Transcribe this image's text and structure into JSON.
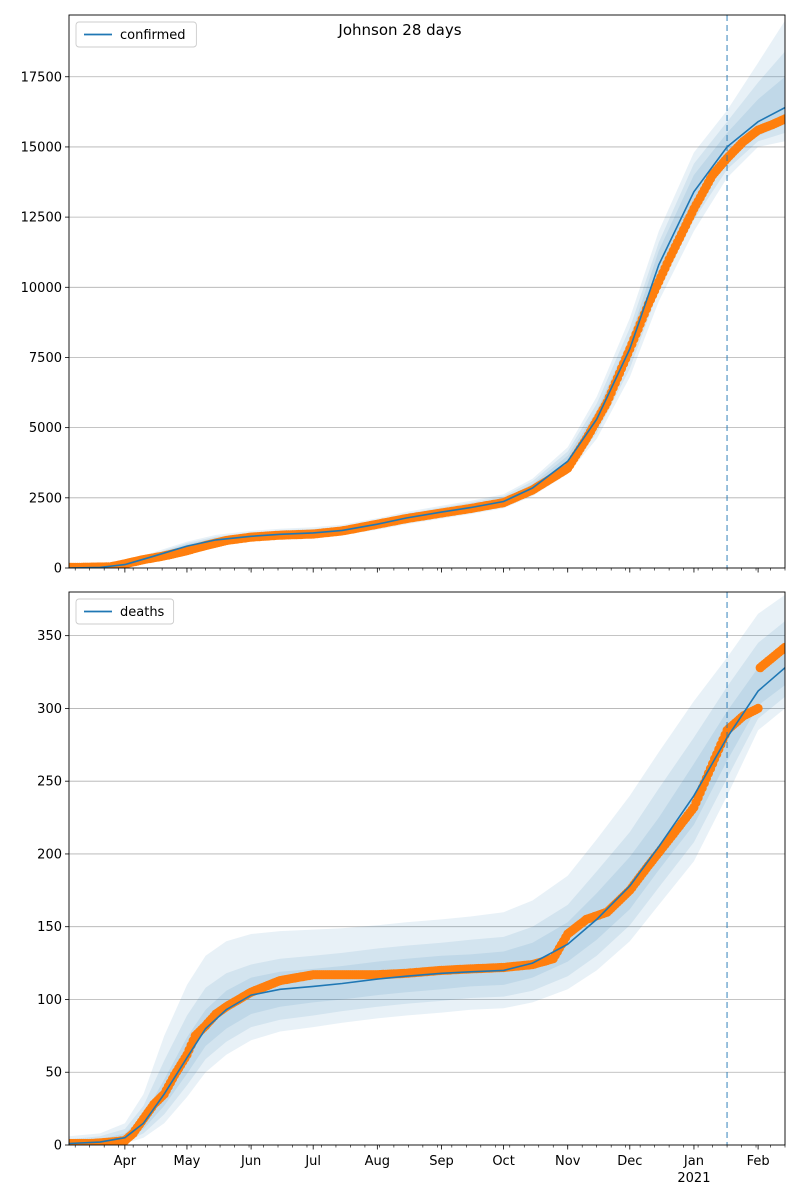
{
  "figure": {
    "title": "Johnson 28 days"
  },
  "colors": {
    "model_line": "#1f77b4",
    "observed_points": "#ff7f0e",
    "band": "#1f77b4",
    "grid": "#b0b0b0",
    "forecast_line": "#1f77b4"
  },
  "x_axis": {
    "month_labels": [
      {
        "date": "2020-04-01",
        "label": "Apr"
      },
      {
        "date": "2020-05-01",
        "label": "May"
      },
      {
        "date": "2020-06-01",
        "label": "Jun"
      },
      {
        "date": "2020-07-01",
        "label": "Jul"
      },
      {
        "date": "2020-08-01",
        "label": "Aug"
      },
      {
        "date": "2020-09-01",
        "label": "Sep"
      },
      {
        "date": "2020-10-01",
        "label": "Oct"
      },
      {
        "date": "2020-11-01",
        "label": "Nov"
      },
      {
        "date": "2020-12-01",
        "label": "Dec"
      },
      {
        "date": "2021-01-01",
        "label": "Jan"
      },
      {
        "date": "2021-02-01",
        "label": "Feb"
      }
    ],
    "year_label": "2021",
    "xlim": [
      "2020-03-05",
      "2021-02-14"
    ],
    "forecast_start": "2021-01-17"
  },
  "chart_data": [
    {
      "type": "line",
      "title": "",
      "xlabel": "",
      "ylabel": "",
      "ylim": [
        0,
        19700
      ],
      "yticks": [
        0,
        2500,
        5000,
        7500,
        10000,
        12500,
        15000,
        17500
      ],
      "grid": "horizontal",
      "legend": {
        "placement": "top-left",
        "entries": [
          "confirmed"
        ]
      },
      "series": [
        {
          "name": "confirmed",
          "kind": "model-median",
          "x": [
            "2020-03-05",
            "2020-03-20",
            "2020-04-01",
            "2020-04-15",
            "2020-05-01",
            "2020-05-15",
            "2020-06-01",
            "2020-06-15",
            "2020-07-01",
            "2020-07-15",
            "2020-08-01",
            "2020-08-15",
            "2020-09-01",
            "2020-09-15",
            "2020-10-01",
            "2020-10-15",
            "2020-11-01",
            "2020-11-15",
            "2020-12-01",
            "2020-12-15",
            "2021-01-01",
            "2021-01-17",
            "2021-02-01",
            "2021-02-14"
          ],
          "y": [
            0,
            20,
            120,
            420,
            780,
            1000,
            1130,
            1200,
            1250,
            1340,
            1560,
            1780,
            1990,
            2150,
            2370,
            2850,
            3800,
            5300,
            7800,
            10800,
            13400,
            15000,
            15900,
            16400
          ],
          "bands": [
            {
              "lower": [
                0,
                5,
                70,
                320,
                640,
                840,
                960,
                1030,
                1080,
                1160,
                1360,
                1560,
                1760,
                1920,
                2130,
                2560,
                3350,
                4600,
                6800,
                9500,
                12000,
                13900,
                15000,
                15200
              ],
              "upper": [
                50,
                80,
                200,
                560,
                940,
                1180,
                1320,
                1400,
                1450,
                1540,
                1770,
                2000,
                2220,
                2390,
                2630,
                3180,
                4300,
                6100,
                8900,
                12000,
                14800,
                16300,
                18000,
                19500
              ]
            },
            {
              "lower": [
                0,
                8,
                85,
                350,
                680,
                880,
                1000,
                1070,
                1120,
                1200,
                1400,
                1610,
                1810,
                1970,
                2180,
                2630,
                3470,
                4800,
                7100,
                9900,
                12400,
                14200,
                15200,
                15500
              ],
              "upper": [
                35,
                55,
                170,
                510,
                890,
                1120,
                1260,
                1340,
                1390,
                1480,
                1710,
                1940,
                2160,
                2330,
                2560,
                3090,
                4150,
                5850,
                8550,
                11600,
                14400,
                15900,
                17300,
                18400
              ]
            },
            {
              "lower": [
                0,
                12,
                100,
                380,
                720,
                930,
                1050,
                1120,
                1170,
                1250,
                1460,
                1670,
                1870,
                2030,
                2250,
                2720,
                3600,
                5000,
                7400,
                10300,
                12800,
                14500,
                15400,
                15800
              ],
              "upper": [
                25,
                35,
                145,
                470,
                840,
                1070,
                1210,
                1280,
                1330,
                1420,
                1650,
                1880,
                2100,
                2260,
                2490,
                2980,
                4000,
                5600,
                8200,
                11300,
                14000,
                15500,
                16700,
                17500
              ]
            }
          ]
        },
        {
          "name": "",
          "kind": "observed",
          "x": [
            "2020-03-05",
            "2020-03-15",
            "2020-03-25",
            "2020-04-01",
            "2020-04-10",
            "2020-04-20",
            "2020-05-01",
            "2020-05-10",
            "2020-05-20",
            "2020-06-01",
            "2020-06-15",
            "2020-07-01",
            "2020-07-15",
            "2020-08-01",
            "2020-08-15",
            "2020-09-01",
            "2020-09-15",
            "2020-10-01",
            "2020-10-15",
            "2020-11-01",
            "2020-11-10",
            "2020-11-20",
            "2020-12-01",
            "2020-12-10",
            "2020-12-20",
            "2021-01-01",
            "2021-01-10",
            "2021-01-17",
            "2021-01-25",
            "2021-02-01",
            "2021-02-08",
            "2021-02-14"
          ],
          "y": [
            20,
            30,
            40,
            150,
            300,
            430,
            620,
            800,
            980,
            1100,
            1170,
            1210,
            1320,
            1560,
            1760,
            1960,
            2120,
            2330,
            2780,
            3550,
            4600,
            5900,
            7800,
            9400,
            11000,
            12800,
            14000,
            14600,
            15200,
            15600,
            15800,
            16000
          ]
        }
      ]
    },
    {
      "type": "line",
      "title": "",
      "xlabel": "",
      "ylabel": "",
      "ylim": [
        0,
        380
      ],
      "yticks": [
        0,
        50,
        100,
        150,
        200,
        250,
        300,
        350
      ],
      "grid": "horizontal",
      "legend": {
        "placement": "top-left",
        "entries": [
          "deaths"
        ]
      },
      "series": [
        {
          "name": "deaths",
          "kind": "model-median",
          "x": [
            "2020-03-05",
            "2020-03-20",
            "2020-04-01",
            "2020-04-10",
            "2020-04-20",
            "2020-05-01",
            "2020-05-10",
            "2020-05-20",
            "2020-06-01",
            "2020-06-15",
            "2020-07-01",
            "2020-07-15",
            "2020-08-01",
            "2020-08-15",
            "2020-09-01",
            "2020-09-15",
            "2020-10-01",
            "2020-10-15",
            "2020-11-01",
            "2020-11-15",
            "2020-12-01",
            "2020-12-15",
            "2021-01-01",
            "2021-01-17",
            "2021-02-01",
            "2021-02-14"
          ],
          "y": [
            1,
            2,
            5,
            15,
            35,
            60,
            80,
            93,
            103,
            107,
            109,
            111,
            114,
            116,
            118,
            119,
            120,
            125,
            138,
            155,
            178,
            205,
            240,
            280,
            312,
            328
          ],
          "bands": [
            {
              "lower": [
                0,
                0,
                1,
                5,
                15,
                33,
                50,
                62,
                72,
                78,
                81,
                84,
                87,
                89,
                91,
                93,
                94,
                98,
                107,
                120,
                140,
                165,
                195,
                240,
                285,
                300
              ],
              "upper": [
                6,
                8,
                15,
                35,
                75,
                110,
                130,
                140,
                145,
                147,
                148,
                149,
                151,
                153,
                155,
                157,
                160,
                168,
                185,
                210,
                240,
                270,
                305,
                335,
                365,
                378
              ]
            },
            {
              "lower": [
                0,
                1,
                2,
                8,
                21,
                41,
                59,
                71,
                81,
                86,
                89,
                92,
                95,
                97,
                99,
                101,
                102,
                106,
                116,
                130,
                151,
                177,
                208,
                252,
                293,
                308
              ],
              "upper": [
                4,
                6,
                11,
                27,
                58,
                89,
                108,
                118,
                124,
                128,
                130,
                132,
                135,
                137,
                139,
                141,
                143,
                150,
                165,
                188,
                215,
                245,
                280,
                315,
                345,
                360
              ]
            },
            {
              "lower": [
                0,
                1,
                3,
                11,
                27,
                49,
                68,
                80,
                90,
                95,
                98,
                100,
                103,
                105,
                107,
                109,
                110,
                115,
                126,
                141,
                162,
                189,
                220,
                264,
                302,
                316
              ],
              "upper": [
                2,
                4,
                8,
                20,
                45,
                74,
                93,
                106,
                115,
                119,
                121,
                123,
                126,
                128,
                130,
                131,
                133,
                139,
                153,
                173,
                198,
                225,
                262,
                298,
                328,
                342
              ]
            }
          ]
        },
        {
          "name": "",
          "kind": "observed",
          "x": [
            "2020-03-05",
            "2020-03-15",
            "2020-03-25",
            "2020-04-01",
            "2020-04-05",
            "2020-04-10",
            "2020-04-15",
            "2020-04-20",
            "2020-04-25",
            "2020-05-01",
            "2020-05-05",
            "2020-05-10",
            "2020-05-15",
            "2020-05-20",
            "2020-06-01",
            "2020-06-15",
            "2020-07-01",
            "2020-07-15",
            "2020-08-01",
            "2020-08-15",
            "2020-09-01",
            "2020-09-15",
            "2020-10-01",
            "2020-10-15",
            "2020-10-25",
            "2020-11-01",
            "2020-11-10",
            "2020-11-20",
            "2020-12-01",
            "2020-12-10",
            "2020-12-20",
            "2021-01-01",
            "2021-01-10",
            "2021-01-17",
            "2021-01-25",
            "2021-02-01",
            "2021-02-02",
            "2021-02-08",
            "2021-02-14"
          ],
          "y": [
            1,
            1,
            2,
            3,
            8,
            18,
            28,
            35,
            48,
            62,
            75,
            82,
            90,
            95,
            105,
            113,
            117,
            117,
            117,
            118,
            120,
            121,
            122,
            124,
            128,
            145,
            155,
            160,
            175,
            192,
            210,
            232,
            262,
            285,
            295,
            300,
            328,
            335,
            342
          ]
        }
      ]
    }
  ]
}
